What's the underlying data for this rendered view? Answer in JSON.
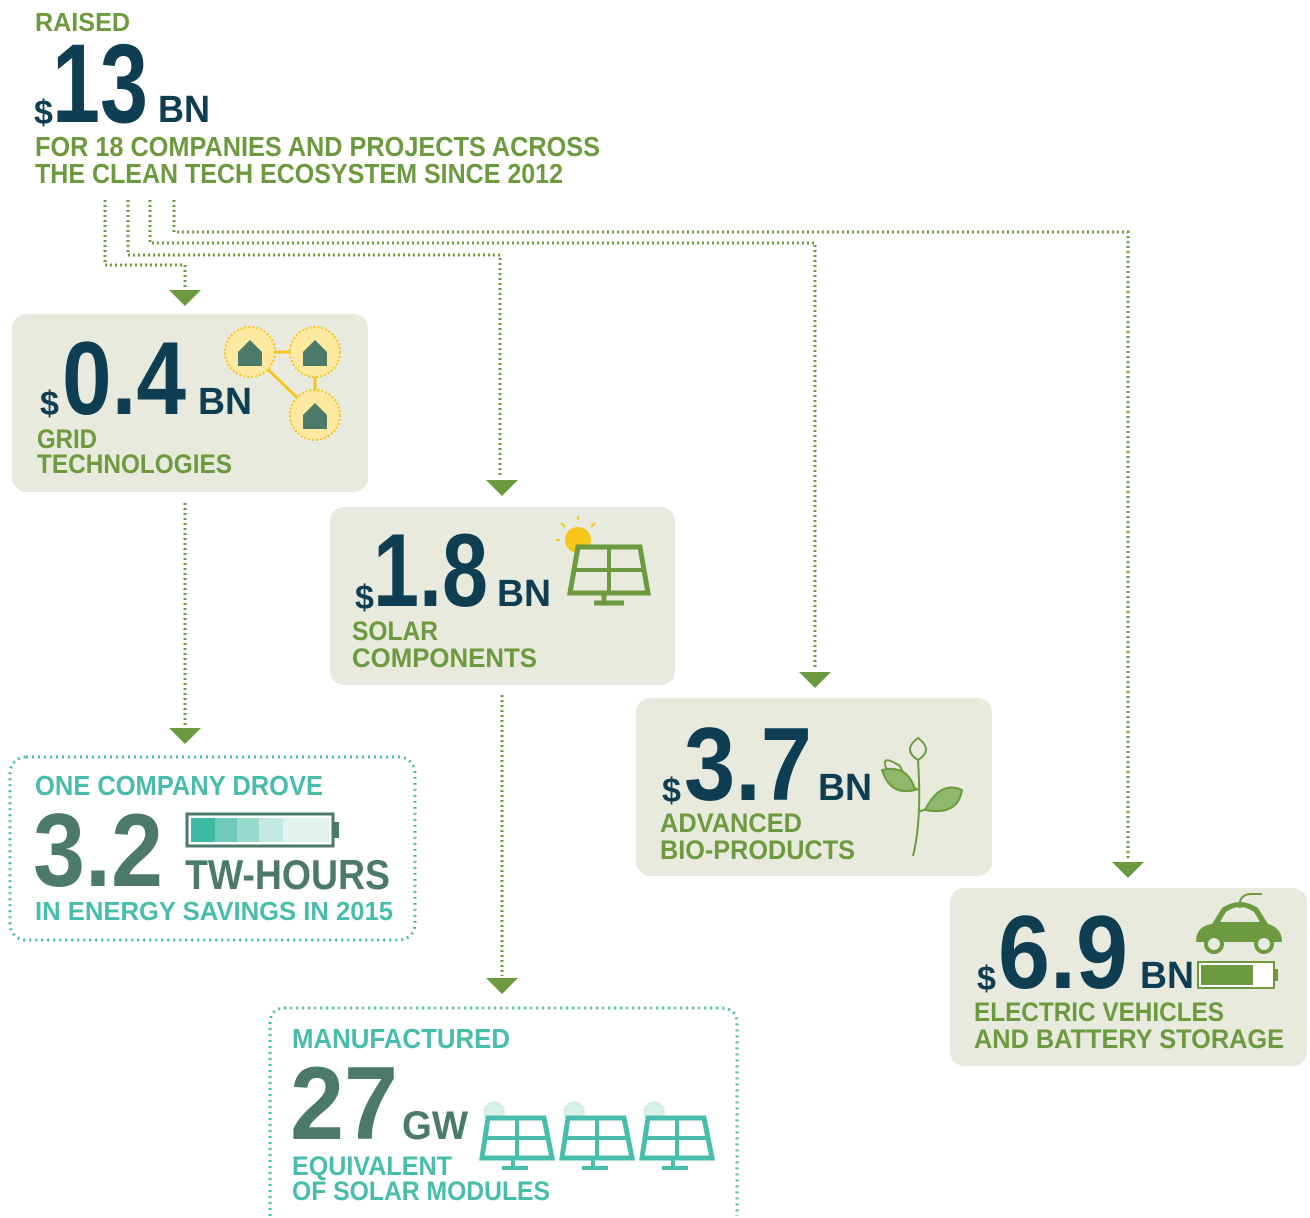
{
  "header": {
    "label": "RAISED",
    "currency": "$",
    "amount": "13",
    "unit": "BN",
    "description": [
      "FOR 18 COMPANIES AND PROJECTS ACROSS",
      "THE CLEAN TECH ECOSYSTEM SINCE 2012"
    ]
  },
  "nodes": [
    {
      "currency": "$",
      "amount": "0.4",
      "unit": "BN",
      "label": [
        "GRID",
        "TECHNOLOGIES"
      ]
    },
    {
      "currency": "$",
      "amount": "1.8",
      "unit": "BN",
      "label": [
        "SOLAR",
        "COMPONENTS"
      ]
    },
    {
      "currency": "$",
      "amount": "3.7",
      "unit": "BN",
      "label": [
        "ADVANCED",
        "BIO-PRODUCTS"
      ]
    },
    {
      "currency": "$",
      "amount": "6.9",
      "unit": "BN",
      "label": [
        "ELECTRIC VEHICLES",
        "AND BATTERY STORAGE"
      ]
    }
  ],
  "impacts": [
    {
      "intro": "ONE COMPANY DROVE",
      "amount": "3.2",
      "unit": "TW-HOURS",
      "label": [
        "IN ENERGY SAVINGS IN 2015"
      ]
    },
    {
      "intro": "MANUFACTURED",
      "amount": "27",
      "unit": "GW",
      "label": [
        "EQUIVALENT",
        "OF SOLAR MODULES"
      ]
    }
  ]
}
